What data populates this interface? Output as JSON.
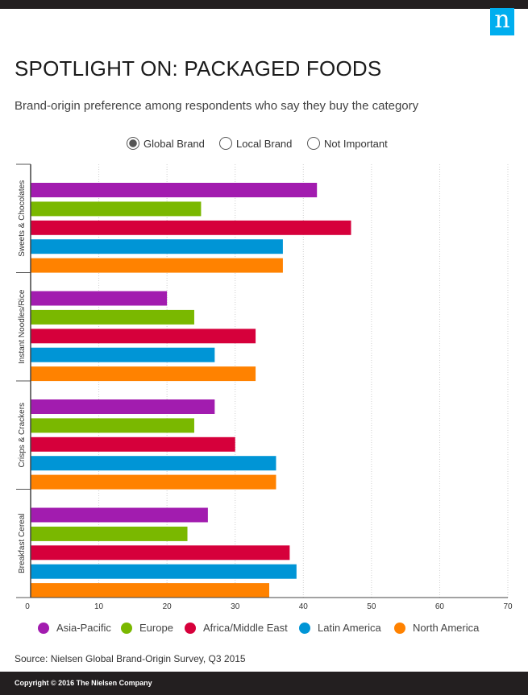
{
  "brand": {
    "logo": "n"
  },
  "header": {
    "title": "SPOTLIGHT ON: PACKAGED FOODS",
    "subtitle": "Brand-origin preference among respondents who say they buy the category"
  },
  "filters": {
    "options": [
      {
        "label": "Global Brand",
        "selected": true
      },
      {
        "label": "Local Brand",
        "selected": false
      },
      {
        "label": "Not Important",
        "selected": false
      }
    ]
  },
  "chart_data": {
    "type": "bar",
    "orientation": "horizontal",
    "categories": [
      "Sweets & Chocolates",
      "Instant Noodles/Rice",
      "Crisps & Crackers",
      "Breakfast Cereal"
    ],
    "series": [
      {
        "name": "Asia-Pacific",
        "color": "#a21caf",
        "values": [
          42,
          20,
          27,
          26
        ]
      },
      {
        "name": "Europe",
        "color": "#7ab800",
        "values": [
          25,
          24,
          24,
          23
        ]
      },
      {
        "name": "Africa/Middle East",
        "color": "#d6003b",
        "values": [
          47,
          33,
          30,
          38
        ]
      },
      {
        "name": "Latin America",
        "color": "#0095d6",
        "values": [
          37,
          27,
          36,
          39
        ]
      },
      {
        "name": "North America",
        "color": "#ff8200",
        "values": [
          37,
          33,
          36,
          35
        ]
      }
    ],
    "xticks": [
      0,
      10,
      20,
      30,
      40,
      50,
      60,
      70
    ],
    "xlim": [
      0,
      70
    ],
    "grid": true,
    "legend": "bottom"
  },
  "footer": {
    "source": "Source: Nielsen Global Brand-Origin Survey, Q3 2015",
    "copyright": "Copyright © 2016 The Nielsen Company"
  },
  "colors": {
    "dark": "#231f20",
    "logo": "#00aeef"
  }
}
